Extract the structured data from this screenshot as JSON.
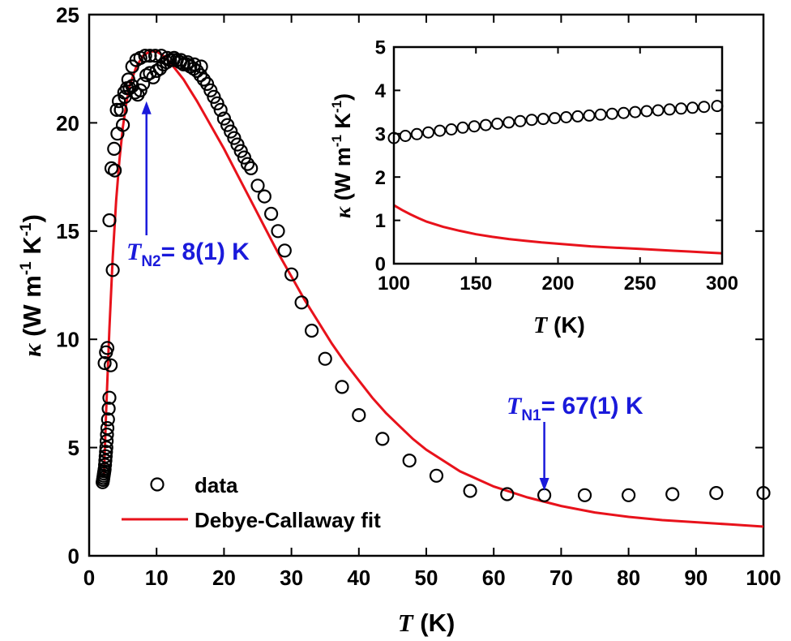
{
  "colors": {
    "data": "#000000",
    "fit": "#e8121b",
    "annotation": "#1a1adb"
  },
  "chart_data": [
    {
      "type": "scatter",
      "title": "",
      "xlabel": {
        "italic": "T",
        "rest": " (K)"
      },
      "ylabel": {
        "kappa": "κ",
        "units": " (W m",
        "exp1": "-1",
        "mid": " K",
        "exp2": "-1",
        "close": ")"
      },
      "xlim": [
        0,
        100
      ],
      "ylim": [
        0,
        25
      ],
      "xticks": [
        0,
        10,
        20,
        30,
        40,
        50,
        60,
        70,
        80,
        90,
        100
      ],
      "yticks": [
        0,
        5,
        10,
        15,
        20,
        25
      ],
      "legend": {
        "placement": "bottom-left",
        "entries": [
          {
            "label": "data",
            "marker": "open-circle"
          },
          {
            "label": "Debye-Callaway fit",
            "marker": "line"
          }
        ]
      },
      "annotations": [
        {
          "italic": "T",
          "sub": "N2",
          "rest": "= 8(1) K",
          "x": 8.5,
          "y": 21.0,
          "arrow": "up"
        },
        {
          "italic": "T",
          "sub": "N1",
          "rest": "= 67(1) K",
          "x": 67.5,
          "y": 3.0,
          "arrow": "down"
        }
      ],
      "series": [
        {
          "name": "data",
          "kind": "scatter",
          "x": [
            2.0,
            2.05,
            2.1,
            2.15,
            2.2,
            2.25,
            2.3,
            2.35,
            2.4,
            2.45,
            2.5,
            2.55,
            2.6,
            2.65,
            2.7,
            2.8,
            2.9,
            3.0,
            3.2,
            3.5,
            3.8,
            4.1,
            4.4,
            4.7,
            5.0,
            5.3,
            5.6,
            6.0,
            6.4,
            6.8,
            7.2,
            7.6,
            8.0,
            8.5,
            9.0,
            9.5,
            10.0,
            10.5,
            11.0,
            11.5,
            12.0,
            12.5,
            13.0,
            13.5,
            14.0,
            14.5,
            15.0,
            15.5,
            16.0,
            16.5,
            17.0,
            17.5,
            18.0,
            18.5,
            19.0,
            19.5,
            20.0,
            20.5,
            21.0,
            21.5,
            22.0,
            22.5,
            23.0,
            23.5,
            24.0,
            25.0,
            26.0,
            27.0,
            28.0,
            29.0,
            30.0,
            31.5,
            33.0,
            35.0,
            37.5,
            40.0,
            43.5,
            47.5,
            51.5,
            56.5,
            62.0,
            67.5,
            73.5,
            80.0,
            86.5,
            93.0,
            100.0,
            2.3,
            2.5,
            2.7,
            3.0,
            3.3,
            3.7,
            4.2,
            4.7,
            5.2,
            5.8,
            6.4,
            7.0,
            7.6,
            8.3,
            9.0,
            9.8,
            10.7,
            11.6,
            12.6,
            13.6,
            14.6,
            15.6,
            16.6
          ],
          "y": [
            3.4,
            3.5,
            3.6,
            3.7,
            3.8,
            3.9,
            4.0,
            4.2,
            4.4,
            4.6,
            4.8,
            5.0,
            5.3,
            5.6,
            5.9,
            6.3,
            6.8,
            7.3,
            8.8,
            13.2,
            17.8,
            20.6,
            21.0,
            20.6,
            19.9,
            21.2,
            21.6,
            21.6,
            21.7,
            21.4,
            21.3,
            21.5,
            21.8,
            22.2,
            22.3,
            22.1,
            22.4,
            22.5,
            22.7,
            22.8,
            22.9,
            22.9,
            22.9,
            22.8,
            22.7,
            22.7,
            22.6,
            22.5,
            22.4,
            22.2,
            22.0,
            21.8,
            21.5,
            21.2,
            20.9,
            20.6,
            20.2,
            19.9,
            19.6,
            19.3,
            19.0,
            18.7,
            18.4,
            18.1,
            17.9,
            17.1,
            16.6,
            15.8,
            15.0,
            14.1,
            13.0,
            11.7,
            10.4,
            9.1,
            7.8,
            6.5,
            5.4,
            4.4,
            3.7,
            3.0,
            2.85,
            2.8,
            2.8,
            2.8,
            2.85,
            2.9,
            2.9,
            8.9,
            9.4,
            9.6,
            15.5,
            17.9,
            18.8,
            19.5,
            20.6,
            21.4,
            22.0,
            22.6,
            22.9,
            23.0,
            23.1,
            23.1,
            23.1,
            23.1,
            23.0,
            23.0,
            22.9,
            22.8,
            22.7,
            22.6
          ]
        },
        {
          "name": "Debye-Callaway fit",
          "kind": "line",
          "x": [
            2.2,
            2.5,
            3.0,
            3.5,
            4.0,
            4.5,
            5.0,
            5.5,
            6.0,
            7.0,
            8.0,
            9.0,
            10.0,
            11.0,
            12.0,
            13.0,
            14.0,
            15.0,
            16.0,
            18.0,
            20.0,
            22.0,
            24.0,
            26.0,
            28.0,
            30.0,
            32.0,
            34.0,
            36.0,
            38.0,
            40.0,
            42.0,
            44.0,
            46.0,
            48.0,
            50.0,
            55.0,
            60.0,
            65.0,
            70.0,
            75.0,
            80.0,
            85.0,
            90.0,
            95.0,
            100.0
          ],
          "y": [
            3.7,
            6.5,
            10.5,
            13.8,
            16.4,
            18.3,
            19.8,
            20.9,
            21.7,
            22.6,
            23.1,
            23.3,
            23.3,
            23.1,
            22.8,
            22.4,
            22.0,
            21.5,
            21.0,
            19.9,
            18.8,
            17.6,
            16.4,
            15.2,
            14.0,
            12.9,
            11.8,
            10.8,
            9.8,
            8.9,
            8.1,
            7.3,
            6.6,
            6.0,
            5.4,
            4.9,
            3.9,
            3.2,
            2.7,
            2.3,
            2.0,
            1.8,
            1.65,
            1.55,
            1.45,
            1.35
          ]
        }
      ]
    },
    {
      "type": "scatter",
      "title": "",
      "xlabel": {
        "italic": "T",
        "rest": " (K)"
      },
      "ylabel": {
        "kappa": "κ",
        "units": " (W m",
        "exp1": "-1",
        "mid": " K",
        "exp2": "-1",
        "close": ")"
      },
      "xlim": [
        100,
        300
      ],
      "ylim": [
        0,
        5
      ],
      "xticks": [
        100,
        150,
        200,
        250,
        300
      ],
      "yticks": [
        0,
        1,
        2,
        3,
        4,
        5
      ],
      "series": [
        {
          "name": "data",
          "kind": "scatter",
          "x": [
            100,
            107,
            114,
            121,
            128,
            135,
            142,
            149,
            156,
            163,
            170,
            177,
            184,
            191,
            198,
            205,
            212,
            219,
            226,
            233,
            240,
            247,
            254,
            261,
            268,
            275,
            282,
            289,
            297
          ],
          "y": [
            2.9,
            2.95,
            2.99,
            3.03,
            3.07,
            3.1,
            3.14,
            3.17,
            3.2,
            3.23,
            3.26,
            3.29,
            3.32,
            3.34,
            3.36,
            3.38,
            3.4,
            3.42,
            3.44,
            3.46,
            3.48,
            3.5,
            3.52,
            3.54,
            3.56,
            3.58,
            3.6,
            3.62,
            3.64
          ]
        },
        {
          "name": "Debye-Callaway fit",
          "kind": "line",
          "x": [
            100,
            105,
            110,
            115,
            120,
            130,
            140,
            150,
            160,
            170,
            180,
            190,
            200,
            210,
            220,
            230,
            240,
            250,
            260,
            270,
            280,
            290,
            300
          ],
          "y": [
            1.35,
            1.24,
            1.14,
            1.05,
            0.97,
            0.85,
            0.76,
            0.68,
            0.62,
            0.57,
            0.53,
            0.49,
            0.46,
            0.43,
            0.4,
            0.38,
            0.36,
            0.34,
            0.32,
            0.3,
            0.28,
            0.26,
            0.24
          ]
        }
      ]
    }
  ]
}
